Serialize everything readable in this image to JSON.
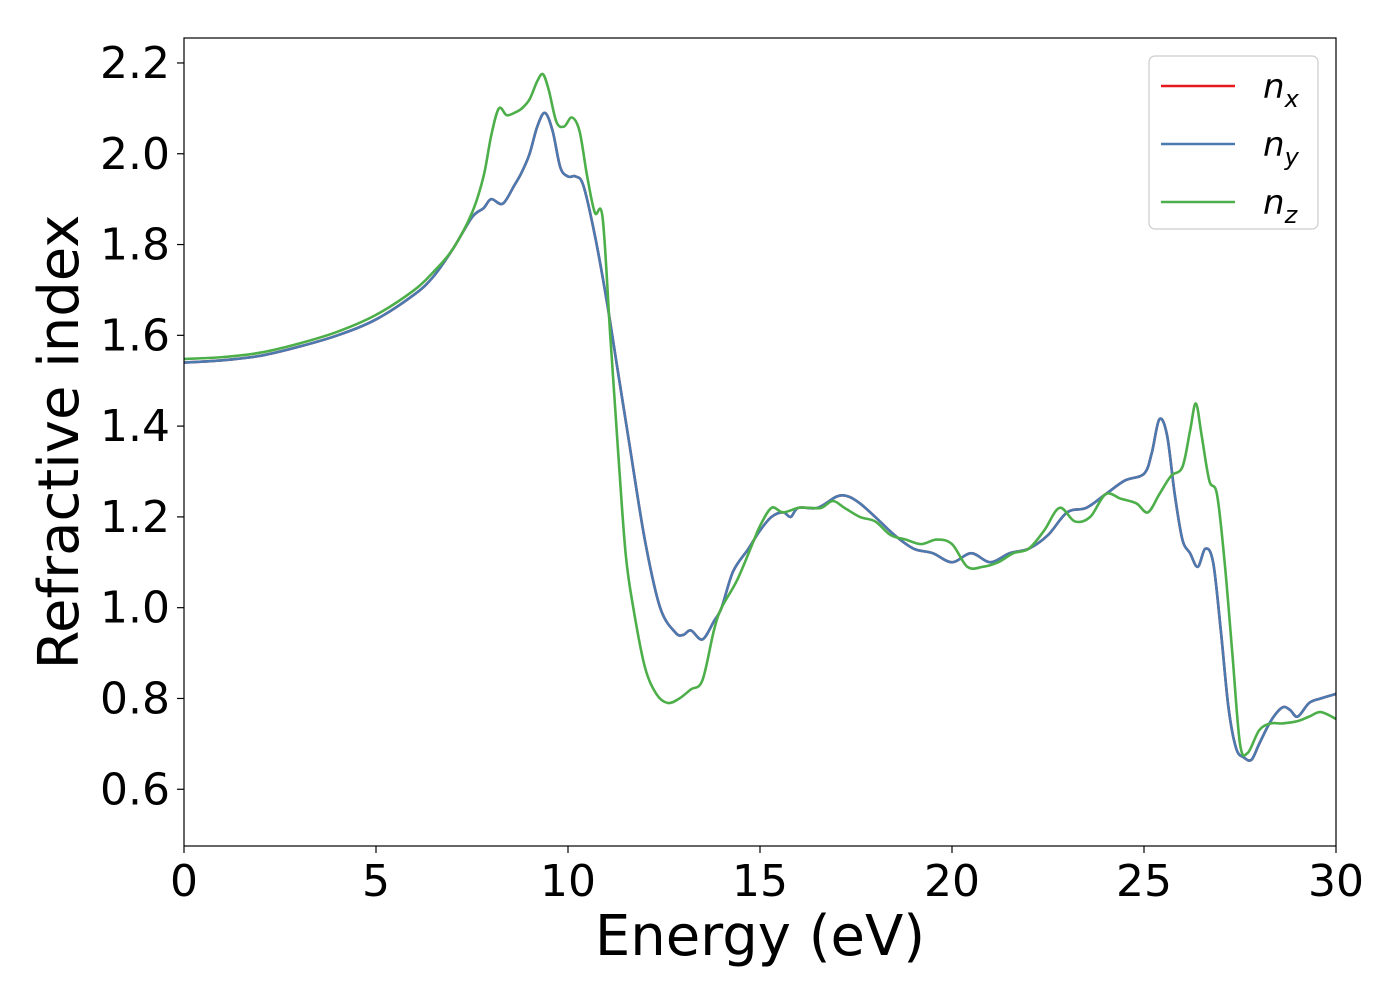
{
  "chart_data": {
    "type": "line",
    "xlabel": "Energy (eV)",
    "ylabel": "Refractive index",
    "xlim": [
      0,
      30
    ],
    "ylim": [
      0.475,
      2.255
    ],
    "xticks": [
      0,
      5,
      10,
      15,
      20,
      25,
      30
    ],
    "xtick_labels": [
      "0",
      "5",
      "10",
      "15",
      "20",
      "25",
      "30"
    ],
    "yticks": [
      0.6,
      0.8,
      1.0,
      1.2,
      1.4,
      1.6,
      1.8,
      2.0,
      2.2
    ],
    "ytick_labels": [
      "0.6",
      "0.8",
      "1.0",
      "1.2",
      "1.4",
      "1.6",
      "1.8",
      "2.0",
      "2.2"
    ],
    "grid": false,
    "legend_position": "top-right",
    "series": [
      {
        "name": "n",
        "subscript": "x",
        "color": "#e41a1c",
        "x": [
          0,
          1,
          2,
          3,
          4,
          5,
          6,
          6.5,
          7,
          7.5,
          7.8,
          8,
          8.3,
          8.6,
          8.8,
          9.0,
          9.2,
          9.4,
          9.6,
          9.8,
          10.0,
          10.2,
          10.4,
          10.7,
          11.0,
          11.3,
          11.6,
          12.0,
          12.4,
          12.8,
          13.0,
          13.2,
          13.5,
          13.8,
          14.0,
          14.3,
          14.7,
          15.0,
          15.3,
          15.6,
          15.8,
          16.0,
          16.5,
          17.0,
          17.3,
          17.6,
          18.0,
          18.5,
          19.0,
          19.5,
          20.0,
          20.5,
          21.0,
          21.5,
          22.0,
          22.5,
          23.0,
          23.5,
          24.0,
          24.5,
          25.0,
          25.2,
          25.4,
          25.6,
          25.8,
          26.0,
          26.2,
          26.4,
          26.6,
          26.8,
          27.0,
          27.2,
          27.4,
          27.6,
          27.8,
          28.0,
          28.3,
          28.6,
          28.8,
          29.0,
          29.3,
          29.6,
          30.0
        ],
        "y": [
          1.54,
          1.545,
          1.555,
          1.575,
          1.6,
          1.635,
          1.69,
          1.73,
          1.79,
          1.86,
          1.88,
          1.9,
          1.89,
          1.93,
          1.96,
          2.0,
          2.06,
          2.09,
          2.05,
          1.97,
          1.95,
          1.95,
          1.93,
          1.82,
          1.68,
          1.52,
          1.36,
          1.15,
          1.0,
          0.945,
          0.94,
          0.95,
          0.93,
          0.97,
          1.0,
          1.08,
          1.13,
          1.17,
          1.2,
          1.21,
          1.2,
          1.22,
          1.22,
          1.245,
          1.245,
          1.23,
          1.2,
          1.16,
          1.13,
          1.12,
          1.1,
          1.12,
          1.1,
          1.12,
          1.13,
          1.16,
          1.21,
          1.22,
          1.25,
          1.28,
          1.295,
          1.34,
          1.415,
          1.38,
          1.25,
          1.15,
          1.12,
          1.09,
          1.13,
          1.1,
          0.95,
          0.78,
          0.69,
          0.67,
          0.665,
          0.7,
          0.75,
          0.78,
          0.775,
          0.76,
          0.79,
          0.8,
          0.81
        ]
      },
      {
        "name": "n",
        "subscript": "y",
        "color": "#4a7ab0",
        "x": [
          0,
          1,
          2,
          3,
          4,
          5,
          6,
          6.5,
          7,
          7.5,
          7.8,
          8,
          8.3,
          8.6,
          8.8,
          9.0,
          9.2,
          9.4,
          9.6,
          9.8,
          10.0,
          10.2,
          10.4,
          10.7,
          11.0,
          11.3,
          11.6,
          12.0,
          12.4,
          12.8,
          13.0,
          13.2,
          13.5,
          13.8,
          14.0,
          14.3,
          14.7,
          15.0,
          15.3,
          15.6,
          15.8,
          16.0,
          16.5,
          17.0,
          17.3,
          17.6,
          18.0,
          18.5,
          19.0,
          19.5,
          20.0,
          20.5,
          21.0,
          21.5,
          22.0,
          22.5,
          23.0,
          23.5,
          24.0,
          24.5,
          25.0,
          25.2,
          25.4,
          25.6,
          25.8,
          26.0,
          26.2,
          26.4,
          26.6,
          26.8,
          27.0,
          27.2,
          27.4,
          27.6,
          27.8,
          28.0,
          28.3,
          28.6,
          28.8,
          29.0,
          29.3,
          29.6,
          30.0
        ],
        "y": [
          1.54,
          1.545,
          1.555,
          1.575,
          1.6,
          1.635,
          1.69,
          1.73,
          1.79,
          1.86,
          1.88,
          1.9,
          1.89,
          1.93,
          1.96,
          2.0,
          2.06,
          2.09,
          2.05,
          1.97,
          1.95,
          1.95,
          1.93,
          1.82,
          1.68,
          1.52,
          1.36,
          1.15,
          1.0,
          0.945,
          0.94,
          0.95,
          0.93,
          0.97,
          1.0,
          1.08,
          1.13,
          1.17,
          1.2,
          1.21,
          1.2,
          1.22,
          1.22,
          1.245,
          1.245,
          1.23,
          1.2,
          1.16,
          1.13,
          1.12,
          1.1,
          1.12,
          1.1,
          1.12,
          1.13,
          1.16,
          1.21,
          1.22,
          1.25,
          1.28,
          1.295,
          1.34,
          1.415,
          1.38,
          1.25,
          1.15,
          1.12,
          1.09,
          1.13,
          1.1,
          0.95,
          0.78,
          0.69,
          0.67,
          0.665,
          0.7,
          0.75,
          0.78,
          0.775,
          0.76,
          0.79,
          0.8,
          0.81
        ]
      },
      {
        "name": "n",
        "subscript": "z",
        "color": "#4daf4a",
        "x": [
          0,
          1,
          2,
          3,
          4,
          5,
          6,
          6.5,
          7,
          7.5,
          7.8,
          8.0,
          8.2,
          8.4,
          8.6,
          8.8,
          9.0,
          9.2,
          9.35,
          9.5,
          9.7,
          9.9,
          10.1,
          10.3,
          10.5,
          10.7,
          10.9,
          11.1,
          11.3,
          11.5,
          11.7,
          12.0,
          12.3,
          12.6,
          12.9,
          13.2,
          13.5,
          13.8,
          14.0,
          14.4,
          14.8,
          15.0,
          15.3,
          15.6,
          16.0,
          16.3,
          16.6,
          16.9,
          17.2,
          17.6,
          18.0,
          18.4,
          18.8,
          19.2,
          19.6,
          20.0,
          20.4,
          20.8,
          21.2,
          21.6,
          22.0,
          22.4,
          22.8,
          23.2,
          23.6,
          24.0,
          24.4,
          24.8,
          25.1,
          25.4,
          25.7,
          26.0,
          26.2,
          26.35,
          26.5,
          26.7,
          26.9,
          27.1,
          27.3,
          27.5,
          27.7,
          28.0,
          28.3,
          28.6,
          29.0,
          29.3,
          29.6,
          30.0
        ],
        "y": [
          1.548,
          1.552,
          1.562,
          1.582,
          1.608,
          1.645,
          1.7,
          1.74,
          1.79,
          1.87,
          1.95,
          2.04,
          2.1,
          2.085,
          2.09,
          2.1,
          2.12,
          2.16,
          2.175,
          2.14,
          2.07,
          2.06,
          2.08,
          2.05,
          1.95,
          1.87,
          1.86,
          1.6,
          1.35,
          1.12,
          1.0,
          0.87,
          0.81,
          0.79,
          0.8,
          0.82,
          0.84,
          0.95,
          1.0,
          1.06,
          1.14,
          1.18,
          1.22,
          1.21,
          1.22,
          1.22,
          1.22,
          1.235,
          1.22,
          1.2,
          1.19,
          1.16,
          1.15,
          1.14,
          1.15,
          1.14,
          1.09,
          1.09,
          1.1,
          1.12,
          1.13,
          1.17,
          1.22,
          1.19,
          1.2,
          1.25,
          1.24,
          1.23,
          1.21,
          1.25,
          1.29,
          1.31,
          1.39,
          1.45,
          1.38,
          1.28,
          1.25,
          1.1,
          0.9,
          0.7,
          0.68,
          0.73,
          0.745,
          0.745,
          0.75,
          0.76,
          0.77,
          0.755
        ]
      }
    ]
  }
}
